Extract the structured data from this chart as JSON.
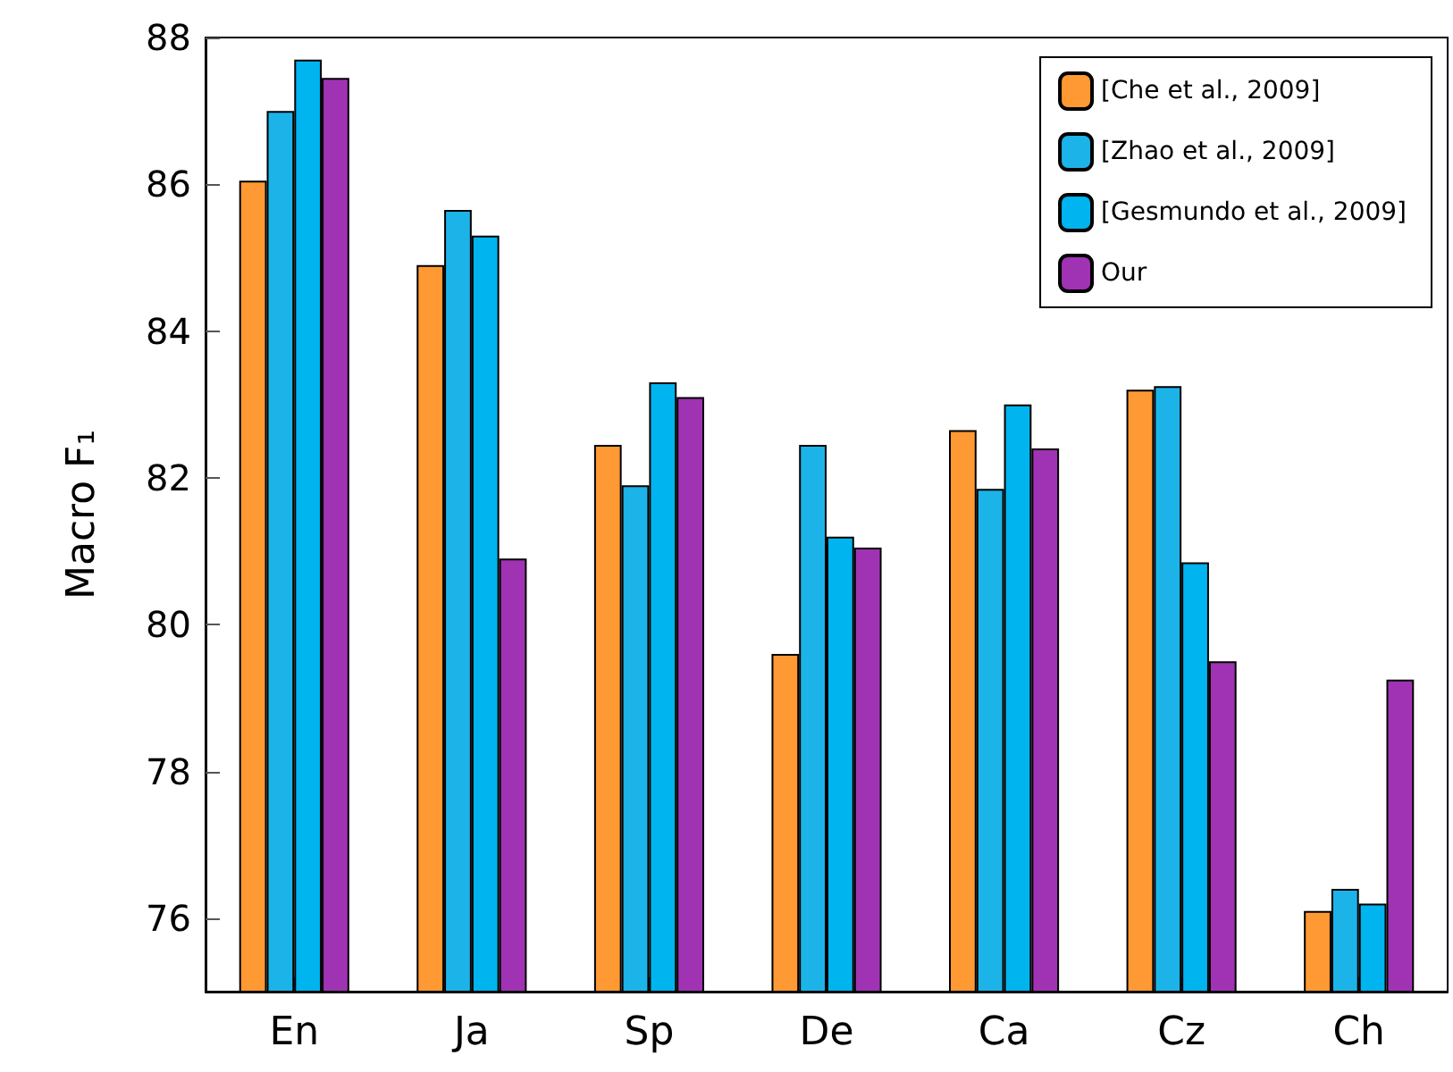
{
  "chart_data": {
    "type": "bar",
    "ylabel": "Macro F₁",
    "categories": [
      "En",
      "Ja",
      "Sp",
      "De",
      "Ca",
      "Cz",
      "Ch"
    ],
    "series": [
      {
        "name": "[Che et al., 2009]",
        "color": "#ff9933",
        "values": [
          86.05,
          84.9,
          82.45,
          79.6,
          82.65,
          83.2,
          76.1
        ]
      },
      {
        "name": "[Zhao et al., 2009]",
        "color": "#1cb3e8",
        "values": [
          87.0,
          85.65,
          81.9,
          82.45,
          81.85,
          83.25,
          76.4
        ]
      },
      {
        "name": "[Gesmundo et al., 2009]",
        "color": "#00b4ef",
        "values": [
          87.7,
          85.3,
          83.3,
          81.2,
          83.0,
          80.85,
          76.2
        ]
      },
      {
        "name": "Our",
        "color": "#a033b3",
        "values": [
          87.45,
          80.9,
          83.1,
          81.05,
          82.4,
          79.5,
          79.25
        ]
      }
    ],
    "ylim": [
      75,
      88
    ],
    "yticks": [
      76,
      78,
      80,
      82,
      84,
      86,
      88
    ],
    "grid": false,
    "legend": "top right"
  }
}
